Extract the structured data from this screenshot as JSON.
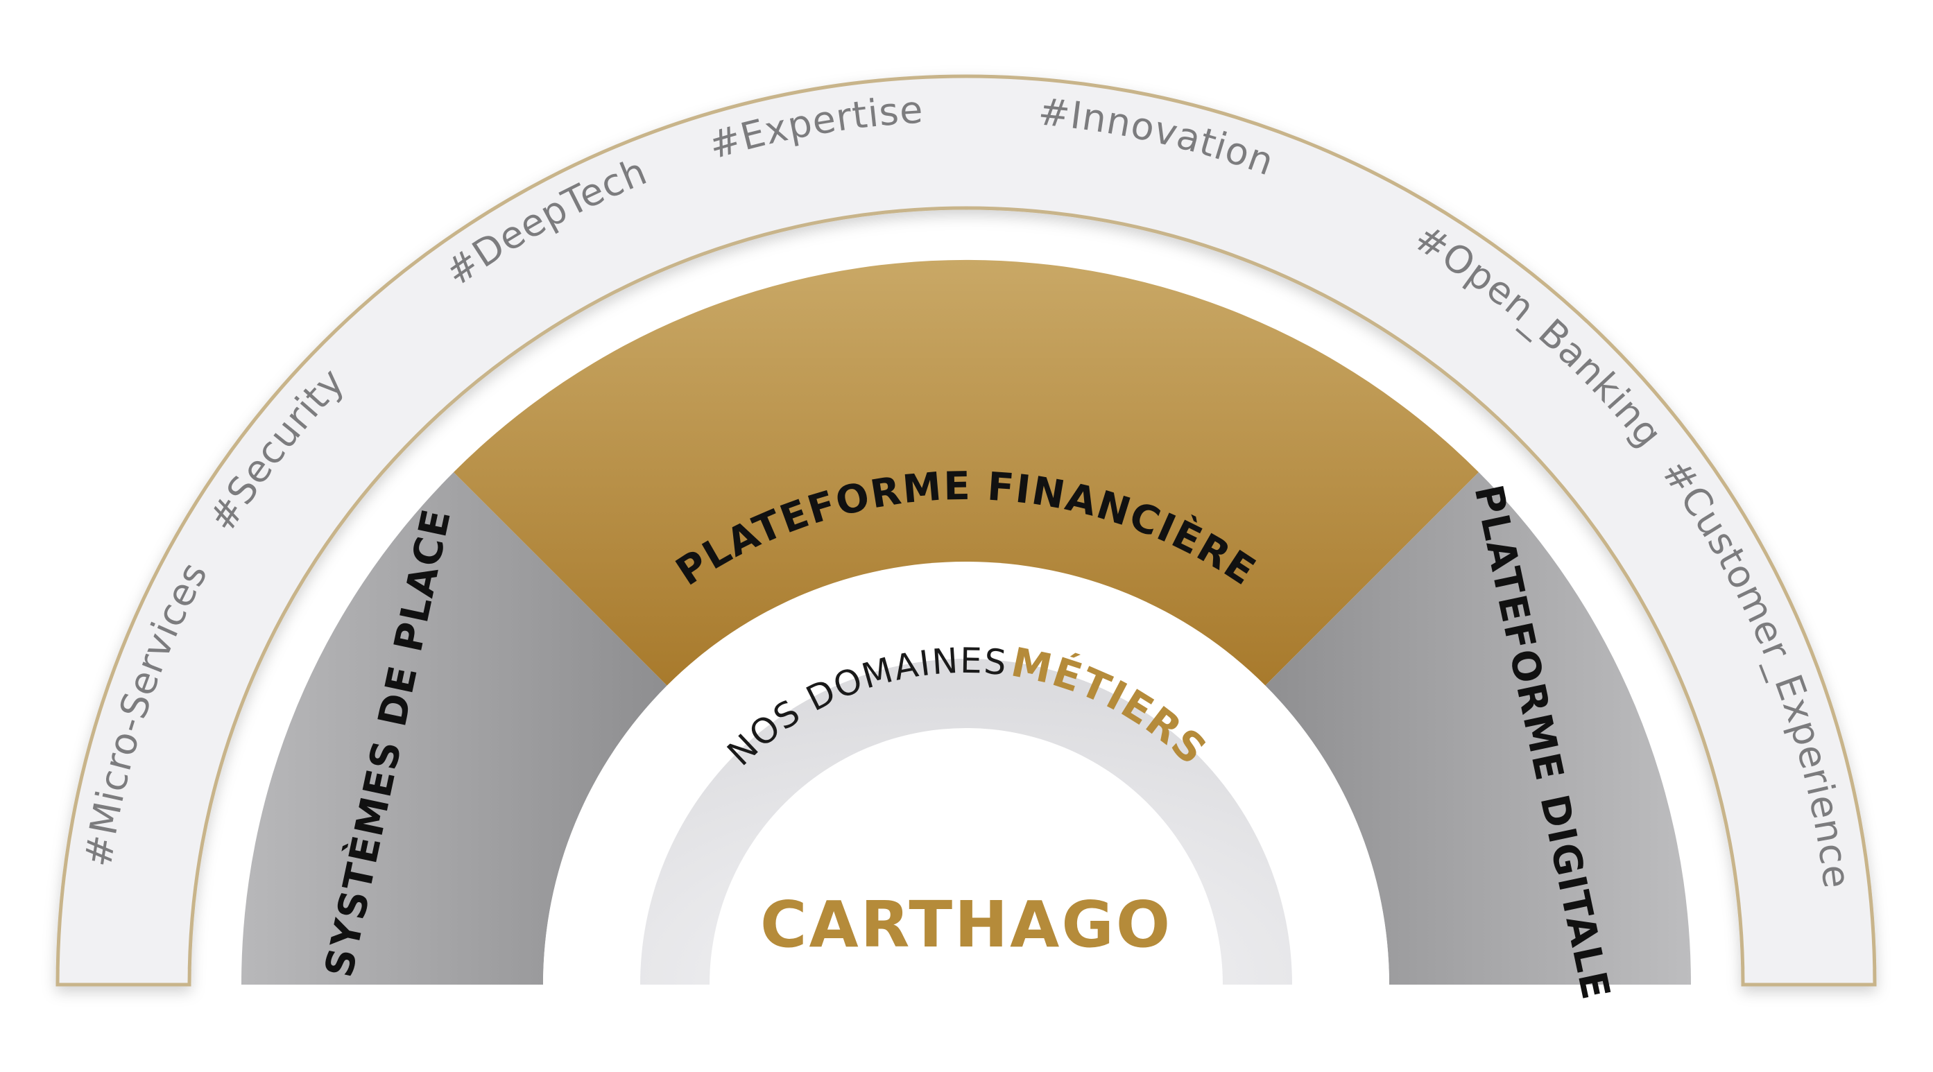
{
  "diagram": {
    "center_title": "CARTHAGO",
    "domains_heading": {
      "plain": "NOS DOMAINES",
      "accent": "MÉTIERS"
    },
    "sectors": [
      {
        "id": "systemes",
        "label": "SYSTÈMES DE PLACE"
      },
      {
        "id": "financiere",
        "label": "PLATEFORME FINANCIÈRE"
      },
      {
        "id": "digitale",
        "label": "PLATEFORME DIGITALE"
      }
    ],
    "hashtags": [
      "#Micro-Services",
      "#Security",
      "#DeepTech",
      "#Expertise",
      "#Innovation",
      "#Open_Banking",
      "#Customer_Experience"
    ]
  },
  "colors": {
    "gold": "#b58b3a",
    "gold_light": "#c9a866",
    "gold_dark": "#a87a2c",
    "gray_sector": "#a9a9ab",
    "outer_band_fill": "#f1f1f3",
    "outer_band_stroke": "#c8b48a",
    "hashtag_text": "#7c7c7e"
  }
}
